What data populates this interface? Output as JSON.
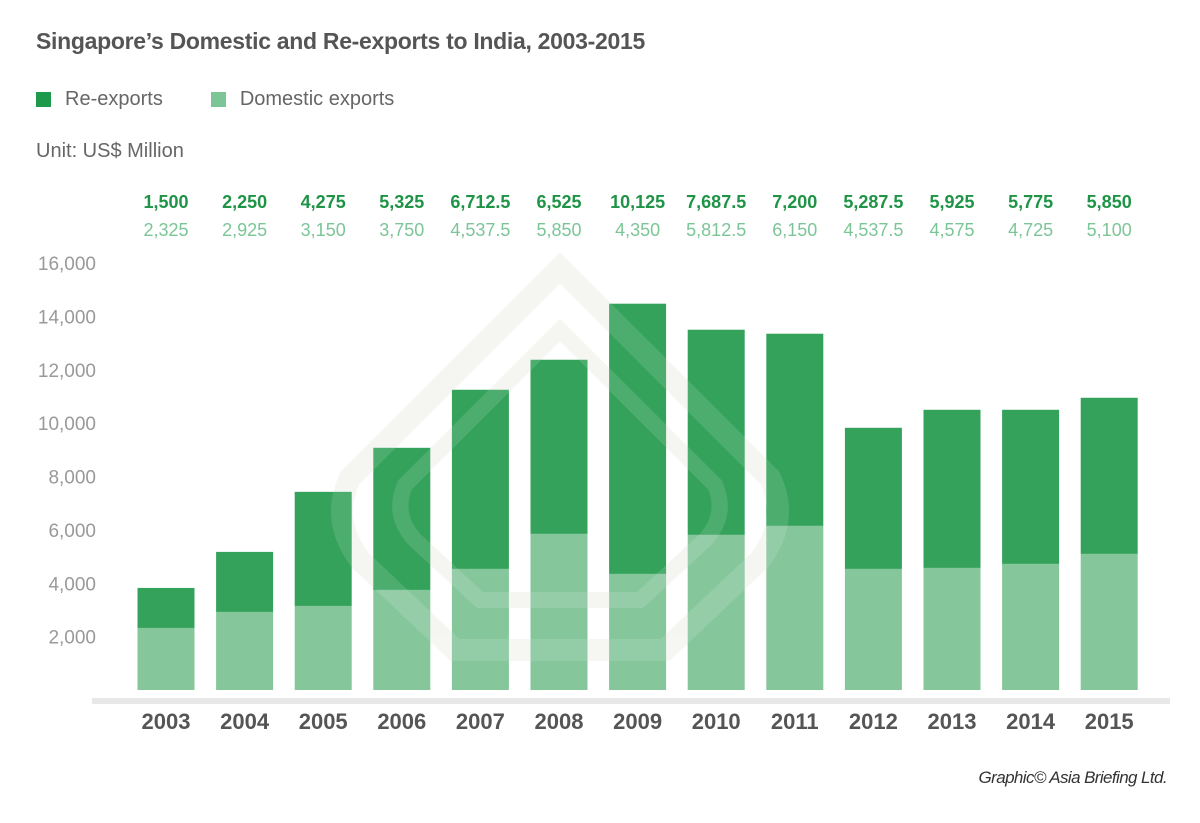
{
  "colors": {
    "reexports": "#34a25b",
    "domestic": "#85c69b",
    "reexports_label": "#1f9447",
    "domestic_label": "#7bc597",
    "axis_base": "#e8e8e8",
    "watermark": "#f0f0ec"
  },
  "header": {
    "title": "Singapore’s Domestic and Re-exports to India, 2003-2015",
    "unit": "Unit: US$ Million"
  },
  "legend": {
    "items": [
      {
        "label": "Re-exports",
        "color": "#34a25b"
      },
      {
        "label": "Domestic exports",
        "color": "#85c69b"
      }
    ]
  },
  "footer": {
    "credit": "Graphic© Asia Briefing Ltd."
  },
  "chart_data": {
    "type": "bar",
    "stacked": true,
    "title": "Singapore’s Domestic and Re-exports to India, 2003-2015",
    "subtitle": "Unit: US$ Million",
    "xlabel": "",
    "ylabel": "",
    "categories": [
      "2003",
      "2004",
      "2005",
      "2006",
      "2007",
      "2008",
      "2009",
      "2010",
      "2011",
      "2012",
      "2013",
      "2014",
      "2015"
    ],
    "series": [
      {
        "name": "Domestic exports",
        "values": [
          2325,
          2925,
          3150,
          3750,
          4537.5,
          5850,
          4350,
          5812.5,
          6150,
          4537.5,
          4575,
          4725,
          5100
        ],
        "labels": [
          "2,325",
          "2,925",
          "3,150",
          "3,750",
          "4,537.5",
          "5,850",
          "4,350",
          "5,812.5",
          "6,150",
          "4,537.5",
          "4,575",
          "4,725",
          "5,100"
        ]
      },
      {
        "name": "Re-exports",
        "values": [
          1500,
          2250,
          4275,
          5325,
          6712.5,
          6525,
          10125,
          7687.5,
          7200,
          5287.5,
          5925,
          5775,
          5850
        ],
        "labels": [
          "1,500",
          "2,250",
          "4,275",
          "5,325",
          "6,712.5",
          "6,525",
          "10,125",
          "7,687.5",
          "7,200",
          "5,287.5",
          "5,925",
          "5,775",
          "5,850"
        ]
      }
    ],
    "yticks": [
      2000,
      4000,
      6000,
      8000,
      10000,
      12000,
      14000,
      16000
    ],
    "ytick_labels": [
      "2,000",
      "4,000",
      "6,000",
      "8,000",
      "10,000",
      "12,000",
      "14,000",
      "16,000"
    ],
    "ylim": [
      0,
      16000
    ],
    "grid": false,
    "legend_position": "top-left",
    "data_labels_position": "above chart, re-exports row over domestic row"
  }
}
